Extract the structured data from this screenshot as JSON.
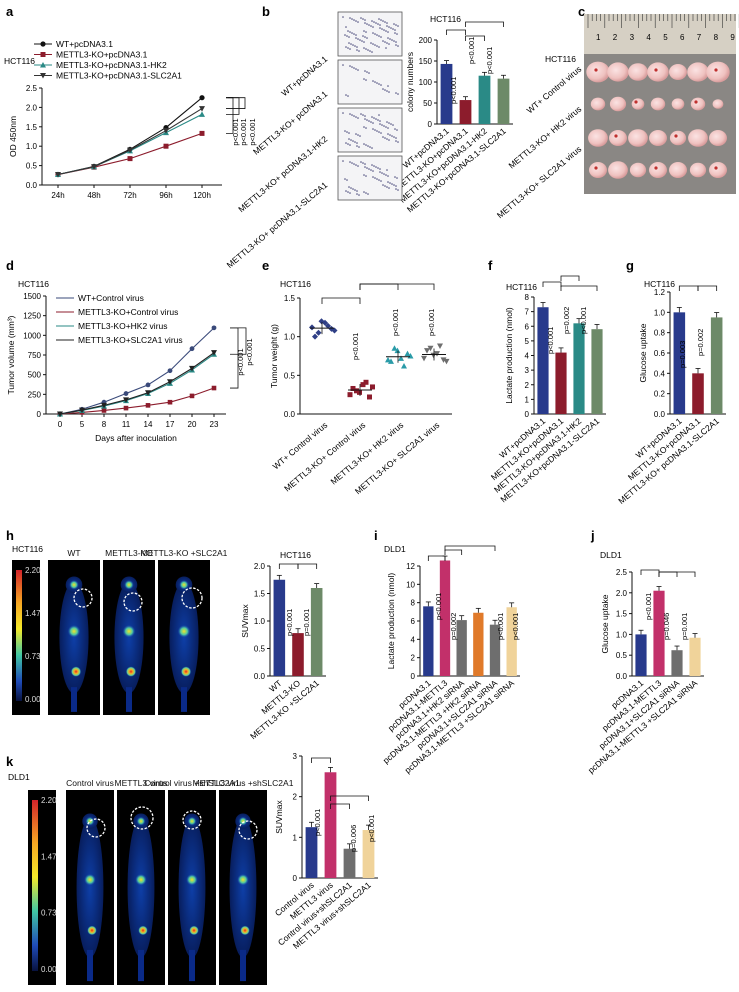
{
  "panels": [
    "a",
    "b",
    "c",
    "d",
    "e",
    "f",
    "g",
    "h",
    "i",
    "j",
    "k"
  ],
  "colors": {
    "navy": "#283a8c",
    "maroon": "#8c1c2c",
    "teal": "#2a8a86",
    "green": "#6d8a68",
    "gray": "#6e6e6e",
    "orange": "#e07a2a",
    "pink": "#c2306a",
    "sand": "#f0d39a",
    "dark": "#111111"
  },
  "chart_data": [
    {
      "panel": "a",
      "type": "line",
      "cell_line": "HCT116",
      "ylabel": "OD 450nm",
      "categories": [
        "24h",
        "48h",
        "72h",
        "96h",
        "120h"
      ],
      "ylim": [
        0,
        2.5
      ],
      "yticks": [
        0,
        0.5,
        1.0,
        1.5,
        2.0,
        2.5
      ],
      "series": [
        {
          "name": "WT+pcDNA3.1",
          "values": [
            0.27,
            0.48,
            0.92,
            1.48,
            2.25
          ]
        },
        {
          "name": "METTL3-KO+pcDNA3.1",
          "values": [
            0.27,
            0.46,
            0.68,
            1.0,
            1.33
          ]
        },
        {
          "name": "METTL3-KO+pcDNA3.1-HK2",
          "values": [
            0.27,
            0.47,
            0.88,
            1.35,
            1.82
          ]
        },
        {
          "name": "METTL3-KO+pcDNA3.1-SLC2A1",
          "values": [
            0.27,
            0.47,
            0.9,
            1.4,
            1.97
          ]
        }
      ],
      "pvalues": [
        "p<0.001",
        "p<0.001",
        "p<0.001"
      ]
    },
    {
      "panel": "b",
      "type": "bar",
      "cell_line": "HCT116",
      "ylabel": "colony numbers",
      "categories": [
        "WT+pcDNA3.1",
        "METTL3-KO+pcDNA3.1",
        "METTL3-KO+pcDNA3.1-HK2",
        "METTL3-KO+pcDNA3.1-SLC2A1"
      ],
      "values": [
        143,
        57,
        115,
        108
      ],
      "ylim": [
        0,
        200
      ],
      "yticks": [
        0,
        50,
        100,
        150,
        200
      ],
      "pvalues": [
        "p<0.001",
        "p<0.001",
        "p<0.001"
      ],
      "plate_labels": [
        "WT+pcDNA3.1",
        "METTL3-KO+ pcDNA3.1",
        "METTL3-KO+ pcDNA3.1-HK2",
        "METTL3-KO+ pcDNA3.1-SLC2A1"
      ]
    },
    {
      "panel": "d",
      "type": "line",
      "cell_line": "HCT116",
      "ylabel": "Tumor volume (mm³)",
      "xlabel": "Days after inoculation",
      "categories": [
        "0",
        "5",
        "8",
        "11",
        "14",
        "17",
        "20",
        "23"
      ],
      "ylim": [
        0,
        1500
      ],
      "yticks": [
        0,
        250,
        500,
        750,
        1000,
        1250,
        1500
      ],
      "series": [
        {
          "name": "WT+Control virus",
          "values": [
            0,
            60,
            150,
            260,
            370,
            550,
            830,
            1095
          ]
        },
        {
          "name": "METTL3-KO+Control virus",
          "values": [
            0,
            20,
            45,
            75,
            110,
            150,
            230,
            330
          ]
        },
        {
          "name": "METTL3-KO+HK2 virus",
          "values": [
            0,
            45,
            100,
            170,
            260,
            390,
            560,
            760
          ]
        },
        {
          "name": "METTL3-KO+SLC2A1 virus",
          "values": [
            0,
            50,
            110,
            180,
            270,
            410,
            580,
            780
          ]
        }
      ],
      "pvalues": [
        "p<0.001",
        "p<0.001"
      ]
    },
    {
      "panel": "e",
      "type": "scatter",
      "cell_line": "HCT116",
      "ylabel": "Tumor weight (g)",
      "categories": [
        "WT+ Control virus",
        "METTL3-KO+ Control virus",
        "METTL3-KO+ HK2 virus",
        "METTL3-KO+ SLC2A1 virus"
      ],
      "points": [
        [
          1.12,
          1.05,
          1.18,
          1.1,
          1.0,
          1.2,
          1.14,
          1.08
        ],
        [
          0.25,
          0.3,
          0.38,
          0.22,
          0.33,
          0.28,
          0.41,
          0.35
        ],
        [
          0.7,
          0.85,
          0.72,
          0.78,
          0.68,
          0.82,
          0.62,
          0.75
        ],
        [
          0.72,
          0.85,
          0.78,
          0.7,
          0.82,
          0.76,
          0.88,
          0.68
        ]
      ],
      "means": [
        1.11,
        0.31,
        0.74,
        0.77
      ],
      "ylim": [
        0,
        1.5
      ],
      "yticks": [
        0,
        0.5,
        1.0,
        1.5
      ],
      "pvalues": [
        "p<0.001",
        "p<0.001",
        "p<0.001"
      ]
    },
    {
      "panel": "f",
      "type": "bar",
      "cell_line": "HCT116",
      "ylabel": "Lactate production (nmol)",
      "categories": [
        "WT+pcDNA3.1",
        "METTL3-KO+pcDNA3.1",
        "METTL3-KO+pcDNA3.1-HK2",
        "METTL3-KO+pcDNA3.1-SLC2A1"
      ],
      "values": [
        7.3,
        4.2,
        6.2,
        5.8
      ],
      "ylim": [
        0,
        8
      ],
      "yticks": [
        0,
        1,
        2,
        3,
        4,
        5,
        6,
        7,
        8
      ],
      "pvalues": [
        "p<0.001",
        "p=0.002",
        "p<0.001"
      ]
    },
    {
      "panel": "g",
      "type": "bar",
      "cell_line": "HCT116",
      "ylabel": "Glucose uptake",
      "categories": [
        "WT+pcDNA3.1",
        "METTL3-KO+pcDNA3.1",
        "METTL3-KO+ pcDNA3.1-SLC2A1"
      ],
      "values": [
        1.0,
        0.4,
        0.95
      ],
      "ylim": [
        0,
        1.2
      ],
      "yticks": [
        0,
        0.2,
        0.4,
        0.6,
        0.8,
        1.0,
        1.2
      ],
      "pvalues": [
        "p=0.003",
        "p=0.002"
      ]
    },
    {
      "panel": "h",
      "type": "bar",
      "cell_line": "HCT116",
      "ylabel": "SUVmax",
      "categories": [
        "WT",
        "METTL3-KO",
        "METTL3-KO +SLC2A1"
      ],
      "values": [
        1.75,
        0.78,
        1.6
      ],
      "ylim": [
        0,
        2.0
      ],
      "yticks": [
        0,
        0.5,
        1.0,
        1.5,
        2.0
      ],
      "pvalues": [
        "p<0.001",
        "p=0.001"
      ]
    },
    {
      "panel": "i",
      "type": "bar",
      "cell_line": "DLD1",
      "ylabel": "Lactate production (nmol)",
      "categories": [
        "pcDNA3.1",
        "pcDNA3.1-METTL3",
        "pcDNA3.1+HK2 siRNA",
        "pcDNA3.1-METTL3 +HK2 siRNA",
        "pcDNA3.1+SLC2A1 siRNA",
        "pcDNA3.1-METTL3 +SLC2A1 siRNA"
      ],
      "values": [
        7.6,
        12.6,
        6.1,
        6.9,
        5.6,
        7.5
      ],
      "ylim": [
        0,
        12
      ],
      "yticks": [
        0,
        2,
        4,
        6,
        8,
        10,
        12
      ],
      "pvalues": [
        "p<0.001",
        "p=0.002",
        "p<0.001",
        "p<0.001"
      ]
    },
    {
      "panel": "j",
      "type": "bar",
      "cell_line": "DLD1",
      "ylabel": "Glucose uptake",
      "categories": [
        "pcDNA3.1",
        "pcDNA3.1-METTL3",
        "pcDNA3.1+SLC2A1 siRNA",
        "pcDNA3.1-METTL3 +SLC2A1 siRNA"
      ],
      "values": [
        1.0,
        2.05,
        0.62,
        0.92
      ],
      "ylim": [
        0,
        2.5
      ],
      "yticks": [
        0,
        0.5,
        1.0,
        1.5,
        2.0,
        2.5
      ],
      "pvalues": [
        "p<0.001",
        "p=0.046",
        "p=0.001"
      ]
    },
    {
      "panel": "k",
      "type": "bar",
      "cell_line": "DLD1",
      "ylabel": "SUVmax",
      "categories": [
        "Control virus",
        "METTL3 virus",
        "Control virus+shSLC2A1",
        "METTL3 virus+shSLC2A1"
      ],
      "values": [
        1.25,
        2.6,
        0.72,
        1.18
      ],
      "ylim": [
        0,
        3
      ],
      "yticks": [
        0,
        1,
        2,
        3
      ],
      "pvalues": [
        "p<0.001",
        "p=0.006",
        "p<0.001"
      ]
    }
  ],
  "panel_c": {
    "cell_line": "HCT116",
    "ruler_numbers": [
      "1",
      "2",
      "3",
      "4",
      "5",
      "6",
      "7",
      "8",
      "9"
    ],
    "row_labels": [
      "WT+ Control virus",
      "METTL3-KO+ HK2 virus",
      "METTL3-KO+ SLC2A1 virus"
    ]
  },
  "panel_h_images": {
    "cell_line": "HCT116",
    "titles": [
      "WT",
      "METTL3-KO",
      "METTL3-KO +SLC2A1"
    ],
    "scale": [
      "2.20",
      "1.47",
      "0.73",
      "0.00"
    ]
  },
  "panel_k_images": {
    "cell_line": "DLD1",
    "titles": [
      "Control virus",
      "METTL3 virus",
      "Control virus +shSLC2A1",
      "METTL3 virus +shSLC2A1"
    ],
    "scale": [
      "2.20",
      "1.47",
      "0.73",
      "0.00"
    ]
  }
}
